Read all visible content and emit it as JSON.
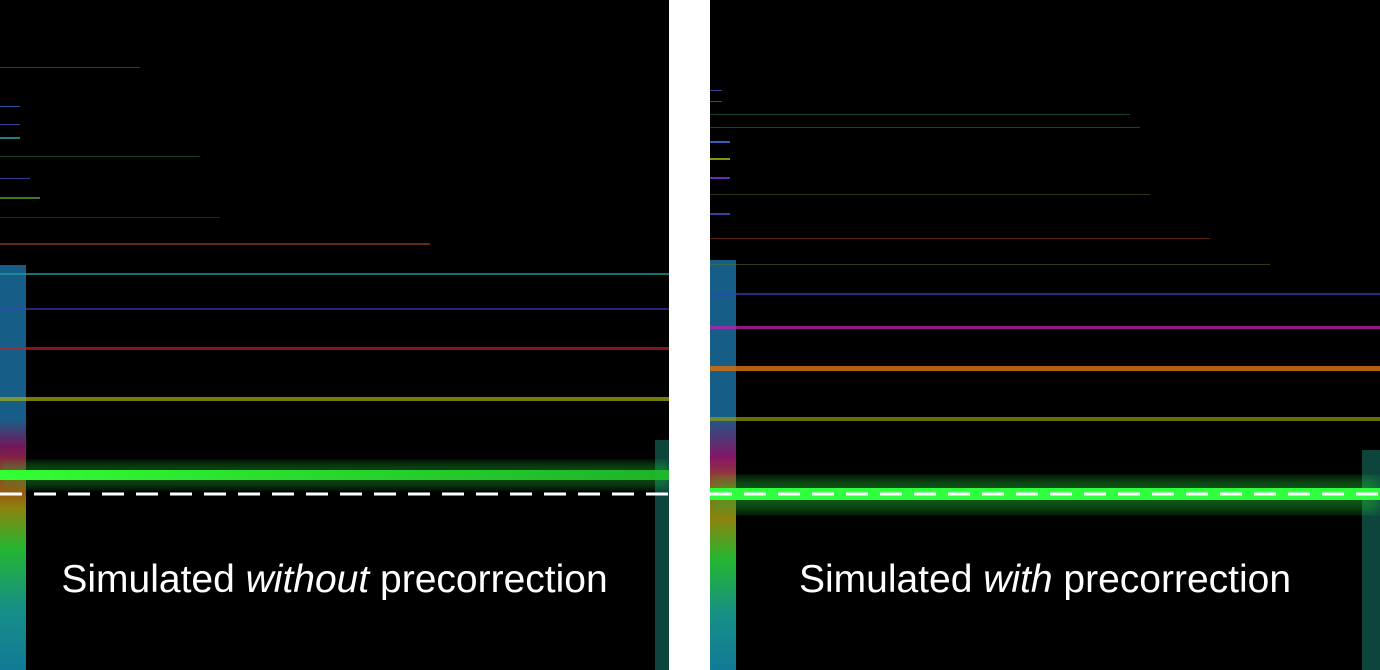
{
  "panels": [
    {
      "id": "left",
      "caption": {
        "pre": "Simulated ",
        "emph": "without",
        "post": " precorrection"
      }
    },
    {
      "id": "right",
      "caption": {
        "pre": "Simulated ",
        "emph": "with",
        "post": " precorrection"
      }
    }
  ]
}
